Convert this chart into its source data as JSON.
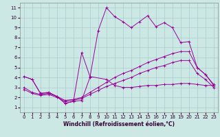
{
  "xlabel": "Windchill (Refroidissement éolien,°C)",
  "bg_color": "#cce8e4",
  "grid_color": "#aacccc",
  "line_color": "#990099",
  "xlim": [
    -0.5,
    23.5
  ],
  "ylim": [
    0.5,
    11.5
  ],
  "xticks": [
    0,
    1,
    2,
    3,
    4,
    5,
    6,
    7,
    8,
    9,
    10,
    11,
    12,
    13,
    14,
    15,
    16,
    17,
    18,
    19,
    20,
    21,
    22,
    23
  ],
  "yticks": [
    1,
    2,
    3,
    4,
    5,
    6,
    7,
    8,
    9,
    10,
    11
  ],
  "line1_x": [
    0,
    1,
    2,
    3,
    4,
    5,
    6,
    7,
    8,
    9,
    10,
    11,
    12,
    13,
    14,
    15,
    16,
    17,
    18,
    19,
    20,
    21,
    22,
    23
  ],
  "line1_y": [
    4.1,
    3.8,
    2.4,
    2.5,
    2.1,
    1.4,
    1.6,
    1.7,
    4.0,
    8.7,
    11.0,
    10.1,
    9.6,
    9.0,
    9.6,
    10.2,
    9.1,
    9.5,
    9.0,
    7.5,
    7.6,
    5.0,
    4.3,
    3.2
  ],
  "line2_x": [
    0,
    1,
    2,
    3,
    4,
    5,
    6,
    7,
    8,
    10,
    11,
    12,
    13,
    14,
    15,
    16,
    17,
    18,
    19,
    20,
    21,
    22,
    23
  ],
  "line2_y": [
    4.1,
    3.8,
    2.4,
    2.5,
    2.1,
    1.4,
    1.6,
    6.5,
    4.1,
    3.8,
    3.2,
    3.0,
    3.0,
    3.1,
    3.2,
    3.2,
    3.3,
    3.3,
    3.4,
    3.4,
    3.3,
    3.2,
    3.2
  ],
  "line3_x": [
    0,
    1,
    2,
    3,
    4,
    5,
    6,
    7,
    8,
    9,
    10,
    11,
    12,
    13,
    14,
    15,
    16,
    17,
    18,
    19,
    20,
    21,
    22,
    23
  ],
  "line3_y": [
    3.0,
    2.5,
    2.3,
    2.4,
    2.1,
    1.7,
    1.8,
    2.0,
    2.5,
    3.0,
    3.5,
    4.0,
    4.4,
    4.7,
    5.1,
    5.5,
    5.8,
    6.1,
    6.4,
    6.6,
    6.6,
    5.0,
    4.3,
    3.3
  ],
  "line4_x": [
    0,
    1,
    2,
    3,
    4,
    5,
    6,
    7,
    8,
    9,
    10,
    11,
    12,
    13,
    14,
    15,
    16,
    17,
    18,
    19,
    20,
    21,
    22,
    23
  ],
  "line4_y": [
    2.8,
    2.4,
    2.2,
    2.3,
    2.0,
    1.6,
    1.7,
    1.9,
    2.3,
    2.7,
    3.1,
    3.4,
    3.7,
    4.0,
    4.4,
    4.7,
    5.0,
    5.2,
    5.5,
    5.7,
    5.7,
    4.4,
    3.8,
    3.0
  ]
}
